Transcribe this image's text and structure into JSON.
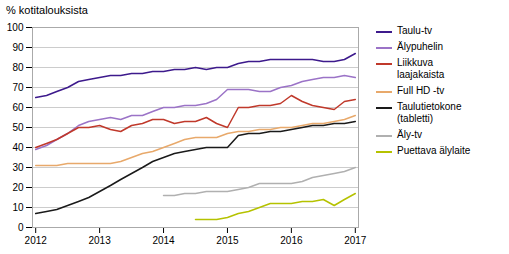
{
  "chart_data": {
    "type": "line",
    "ylabel": "% kotitalouksista",
    "xlim": [
      2011.95,
      2017.05
    ],
    "xticks": [
      2012,
      2013,
      2014,
      2015,
      2016,
      2017
    ],
    "ylim": [
      0,
      100
    ],
    "yticks": [
      0,
      10,
      20,
      30,
      40,
      50,
      60,
      70,
      80,
      90,
      100
    ],
    "grid": true,
    "legend": "right",
    "x": [
      2012.0,
      2012.17,
      2012.33,
      2012.5,
      2012.67,
      2012.83,
      2013.0,
      2013.17,
      2013.33,
      2013.5,
      2013.67,
      2013.83,
      2014.0,
      2014.17,
      2014.33,
      2014.5,
      2014.67,
      2014.83,
      2015.0,
      2015.17,
      2015.33,
      2015.5,
      2015.67,
      2015.83,
      2016.0,
      2016.17,
      2016.33,
      2016.5,
      2016.67,
      2016.83,
      2017.0
    ],
    "series": [
      {
        "name": "Taulu-tv",
        "color": "#3d1a8c",
        "values": [
          65,
          66,
          68,
          70,
          73,
          74,
          75,
          76,
          76,
          77,
          77,
          78,
          78,
          79,
          79,
          80,
          79,
          80,
          80,
          82,
          83,
          83,
          84,
          84,
          84,
          84,
          84,
          83,
          83,
          84,
          87
        ]
      },
      {
        "name": "Älypuhelin",
        "color": "#9b73c7",
        "values": [
          39,
          41,
          44,
          47,
          51,
          53,
          54,
          55,
          54,
          56,
          56,
          58,
          60,
          60,
          61,
          61,
          62,
          64,
          69,
          69,
          69,
          68,
          68,
          70,
          71,
          73,
          74,
          75,
          75,
          76,
          75
        ]
      },
      {
        "name": "Liikkuva\nlaajakaista",
        "color": "#c0392b",
        "values": [
          40,
          42,
          44,
          47,
          50,
          50,
          51,
          49,
          48,
          51,
          52,
          54,
          54,
          52,
          53,
          53,
          55,
          52,
          50,
          60,
          60,
          61,
          61,
          62,
          66,
          63,
          61,
          60,
          59,
          63,
          64
        ]
      },
      {
        "name": "Full HD -tv",
        "color": "#e8a96b",
        "values": [
          31,
          31,
          31,
          32,
          32,
          32,
          32,
          32,
          33,
          35,
          37,
          38,
          40,
          42,
          44,
          45,
          45,
          45,
          47,
          48,
          48,
          49,
          49,
          50,
          50,
          51,
          52,
          52,
          53,
          54,
          56
        ]
      },
      {
        "name": "Taulutietokone\n(tabletti)",
        "color": "#1a1a1a",
        "values": [
          7,
          8,
          9,
          11,
          13,
          15,
          18,
          21,
          24,
          27,
          30,
          33,
          35,
          37,
          38,
          39,
          40,
          40,
          40,
          46,
          47,
          47,
          48,
          48,
          49,
          50,
          51,
          51,
          52,
          52,
          53
        ]
      },
      {
        "name": "Äly-tv",
        "color": "#b0b0b0",
        "values": [
          null,
          null,
          null,
          null,
          null,
          null,
          null,
          null,
          null,
          null,
          null,
          null,
          16,
          16,
          17,
          17,
          18,
          18,
          18,
          19,
          20,
          22,
          22,
          22,
          22,
          23,
          25,
          26,
          27,
          28,
          30
        ]
      },
      {
        "name": "Puettava älylaite",
        "color": "#b5c200",
        "values": [
          null,
          null,
          null,
          null,
          null,
          null,
          null,
          null,
          null,
          null,
          null,
          null,
          null,
          null,
          null,
          4,
          4,
          4,
          5,
          7,
          8,
          10,
          12,
          12,
          12,
          13,
          13,
          14,
          11,
          14,
          17
        ]
      }
    ]
  }
}
